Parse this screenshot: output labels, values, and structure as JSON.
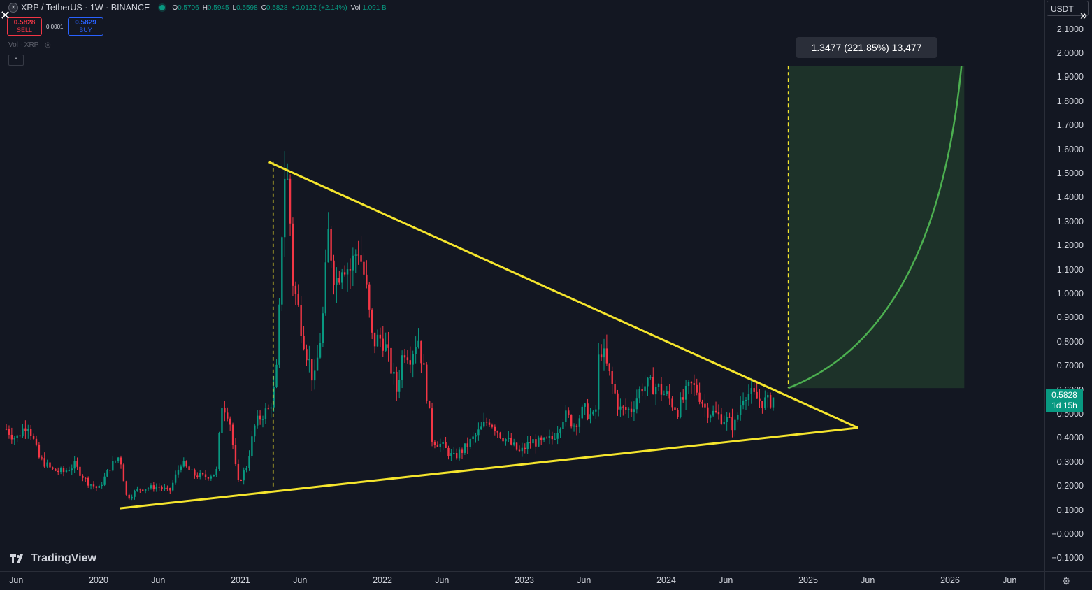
{
  "header": {
    "symbol": "XRP / TetherUS · 1W · BINANCE",
    "ohlc": [
      {
        "k": "O",
        "v": "0.5706"
      },
      {
        "k": "H",
        "v": "0.5945"
      },
      {
        "k": "L",
        "v": "0.5598"
      },
      {
        "k": "C",
        "v": "0.5828"
      }
    ],
    "change": "+0.0122 (+2.14%)",
    "vol_label": "Vol",
    "vol_value": "1.091 B"
  },
  "trade": {
    "sell_price": "0.5828",
    "sell_label": "SELL",
    "spread": "0.0001",
    "buy_price": "0.5829",
    "buy_label": "BUY"
  },
  "volume_indicator": "Vol · XRP",
  "currency": "USDT",
  "current_price": {
    "price": "0.5828",
    "countdown": "1d 15h"
  },
  "measure_label": "1.3477 (221.85%) 13,477",
  "brand": "TradingView",
  "chart_data": {
    "type": "candlestick",
    "y_axis": {
      "ticks": [
        "2.1000",
        "2.0000",
        "1.9000",
        "1.8000",
        "1.7000",
        "1.6000",
        "1.5000",
        "1.4000",
        "1.3000",
        "1.2000",
        "1.1000",
        "1.0000",
        "0.9000",
        "0.8000",
        "0.7000",
        "0.6000",
        "0.5000",
        "0.4000",
        "0.3000",
        "0.2000",
        "0.1000",
        "−0.0000",
        "−0.1000"
      ],
      "range": [
        -0.13,
        2.2
      ]
    },
    "x_axis": {
      "ticks": [
        {
          "label": "Jun",
          "t": 2019.42
        },
        {
          "label": "2020",
          "t": 2020.0
        },
        {
          "label": "Jun",
          "t": 2020.42
        },
        {
          "label": "2021",
          "t": 2021.0
        },
        {
          "label": "Jun",
          "t": 2021.42
        },
        {
          "label": "2022",
          "t": 2022.0
        },
        {
          "label": "Jun",
          "t": 2022.42
        },
        {
          "label": "2023",
          "t": 2023.0
        },
        {
          "label": "Jun",
          "t": 2023.42
        },
        {
          "label": "2024",
          "t": 2024.0
        },
        {
          "label": "Jun",
          "t": 2024.42
        },
        {
          "label": "2025",
          "t": 2025.0
        },
        {
          "label": "Jun",
          "t": 2025.42
        },
        {
          "label": "2026",
          "t": 2026.0
        },
        {
          "label": "Jun",
          "t": 2026.42
        }
      ]
    },
    "series_close": [
      [
        2019.35,
        0.44
      ],
      [
        2019.42,
        0.4
      ],
      [
        2019.5,
        0.47
      ],
      [
        2019.58,
        0.32
      ],
      [
        2019.67,
        0.27
      ],
      [
        2019.75,
        0.26
      ],
      [
        2019.83,
        0.29
      ],
      [
        2019.92,
        0.22
      ],
      [
        2020.0,
        0.19
      ],
      [
        2020.08,
        0.28
      ],
      [
        2020.15,
        0.33
      ],
      [
        2020.2,
        0.15
      ],
      [
        2020.28,
        0.19
      ],
      [
        2020.42,
        0.2
      ],
      [
        2020.5,
        0.18
      ],
      [
        2020.58,
        0.3
      ],
      [
        2020.67,
        0.25
      ],
      [
        2020.75,
        0.24
      ],
      [
        2020.83,
        0.26
      ],
      [
        2020.87,
        0.55
      ],
      [
        2020.92,
        0.5
      ],
      [
        2020.98,
        0.21
      ],
      [
        2021.04,
        0.28
      ],
      [
        2021.1,
        0.45
      ],
      [
        2021.15,
        0.5
      ],
      [
        2021.2,
        0.52
      ],
      [
        2021.25,
        0.63
      ],
      [
        2021.28,
        1.0
      ],
      [
        2021.3,
        1.45
      ],
      [
        2021.32,
        1.55
      ],
      [
        2021.35,
        1.3
      ],
      [
        2021.37,
        1.05
      ],
      [
        2021.42,
        0.9
      ],
      [
        2021.47,
        0.75
      ],
      [
        2021.52,
        0.63
      ],
      [
        2021.58,
        0.9
      ],
      [
        2021.62,
        1.25
      ],
      [
        2021.67,
        1.05
      ],
      [
        2021.72,
        1.15
      ],
      [
        2021.77,
        1.1
      ],
      [
        2021.83,
        1.2
      ],
      [
        2021.88,
        1.05
      ],
      [
        2021.93,
        0.8
      ],
      [
        2022.0,
        0.82
      ],
      [
        2022.05,
        0.72
      ],
      [
        2022.1,
        0.6
      ],
      [
        2022.15,
        0.78
      ],
      [
        2022.2,
        0.75
      ],
      [
        2022.25,
        0.83
      ],
      [
        2022.3,
        0.65
      ],
      [
        2022.35,
        0.4
      ],
      [
        2022.42,
        0.37
      ],
      [
        2022.5,
        0.32
      ],
      [
        2022.58,
        0.36
      ],
      [
        2022.67,
        0.42
      ],
      [
        2022.75,
        0.48
      ],
      [
        2022.83,
        0.42
      ],
      [
        2022.9,
        0.38
      ],
      [
        2022.97,
        0.34
      ],
      [
        2023.05,
        0.39
      ],
      [
        2023.12,
        0.38
      ],
      [
        2023.2,
        0.4
      ],
      [
        2023.28,
        0.5
      ],
      [
        2023.35,
        0.46
      ],
      [
        2023.42,
        0.52
      ],
      [
        2023.5,
        0.48
      ],
      [
        2023.53,
        0.8
      ],
      [
        2023.58,
        0.7
      ],
      [
        2023.67,
        0.52
      ],
      [
        2023.75,
        0.52
      ],
      [
        2023.83,
        0.62
      ],
      [
        2023.92,
        0.62
      ],
      [
        2024.0,
        0.58
      ],
      [
        2024.08,
        0.52
      ],
      [
        2024.17,
        0.62
      ],
      [
        2024.22,
        0.6
      ],
      [
        2024.28,
        0.52
      ],
      [
        2024.35,
        0.5
      ],
      [
        2024.42,
        0.48
      ],
      [
        2024.48,
        0.45
      ],
      [
        2024.55,
        0.6
      ],
      [
        2024.6,
        0.58
      ],
      [
        2024.65,
        0.56
      ],
      [
        2024.72,
        0.55
      ],
      [
        2024.77,
        0.58
      ]
    ],
    "annotations": {
      "upper_trendline": [
        [
          2021.2,
          1.55
        ],
        [
          2025.35,
          0.445
        ]
      ],
      "lower_trendline": [
        [
          2020.15,
          0.11
        ],
        [
          2025.35,
          0.445
        ]
      ],
      "target_price": 1.95,
      "projection_curve_end": [
        2026.08,
        1.95
      ]
    }
  }
}
